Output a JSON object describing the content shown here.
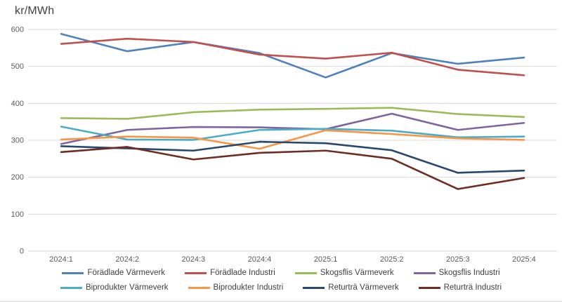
{
  "chart_data": {
    "type": "line",
    "title": "kr/MWh",
    "xlabel": "",
    "ylabel": "",
    "categories": [
      "2024:1",
      "2024:2",
      "2024:3",
      "2024:4",
      "2025:1",
      "2025:2",
      "2025:3",
      "2025:4"
    ],
    "series": [
      {
        "name": "Förädlade Värmeverk",
        "color": "#4F81BD",
        "values": [
          588,
          541,
          566,
          536,
          470,
          536,
          507,
          524
        ]
      },
      {
        "name": "Förädlade Industri",
        "color": "#C0504D",
        "values": [
          561,
          575,
          566,
          532,
          521,
          537,
          491,
          476
        ]
      },
      {
        "name": "Skogsflis Värmeverk",
        "color": "#9BBB59",
        "values": [
          360,
          358,
          376,
          383,
          385,
          388,
          371,
          363
        ]
      },
      {
        "name": "Skogsflis Industri",
        "color": "#8064A2",
        "values": [
          290,
          328,
          336,
          335,
          330,
          372,
          328,
          347
        ]
      },
      {
        "name": "Biprodukter Värmeverk",
        "color": "#4BACC6",
        "values": [
          337,
          302,
          301,
          328,
          331,
          326,
          308,
          310
        ]
      },
      {
        "name": "Biprodukter Industri",
        "color": "#F79646",
        "values": [
          302,
          310,
          307,
          277,
          327,
          317,
          305,
          301
        ]
      },
      {
        "name": "Returträ Värmeverk",
        "color": "#27486F",
        "values": [
          284,
          278,
          272,
          296,
          292,
          273,
          212,
          218
        ]
      },
      {
        "name": "Returträ Industri",
        "color": "#6F2C23",
        "values": [
          268,
          282,
          248,
          266,
          272,
          250,
          168,
          198
        ]
      }
    ],
    "ylim": [
      0,
      600
    ],
    "ytick_step": 100,
    "yticks": [
      0,
      100,
      200,
      300,
      400,
      500,
      600
    ],
    "grid": true,
    "legend_position": "bottom",
    "legend_rows": 2,
    "legend_items_per_row": 4
  },
  "colors": {
    "grid": "#D9D9D9",
    "axis_text": "#595959",
    "title_text": "#3F3F3F",
    "legend_text": "#404040",
    "background": "#FFFFFF",
    "bottom_edge": "#D6D6D6"
  }
}
